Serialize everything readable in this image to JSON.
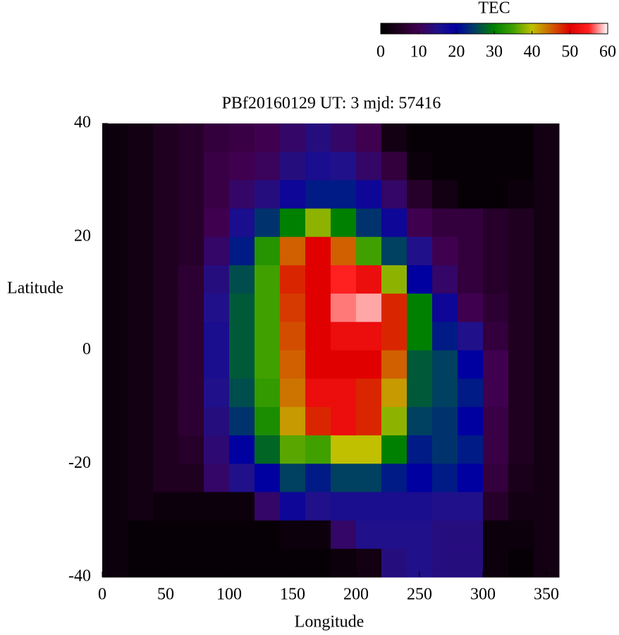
{
  "chart_data": {
    "type": "heatmap",
    "title": "PBf20160129  UT: 3  mjd: 57416",
    "xlabel": "Longitude",
    "ylabel": "Latitude",
    "x": [
      10,
      30,
      50,
      70,
      90,
      110,
      130,
      150,
      170,
      190,
      210,
      230,
      250,
      270,
      290,
      310,
      330,
      350
    ],
    "y": [
      37.5,
      32.5,
      27.5,
      22.5,
      17.5,
      12.5,
      7.5,
      2.5,
      -2.5,
      -7.5,
      -12.5,
      -17.5,
      -22.5,
      -27.5,
      -32.5,
      -37.5
    ],
    "values": [
      [
        2,
        3,
        5,
        6,
        8,
        9,
        10,
        12,
        14,
        12,
        10,
        3,
        1,
        1,
        1,
        1,
        1,
        3
      ],
      [
        2,
        3,
        5,
        6,
        9,
        10,
        11,
        14,
        16,
        15,
        12,
        8,
        2,
        1,
        1,
        1,
        1,
        3
      ],
      [
        2,
        3,
        5,
        6,
        9,
        12,
        14,
        18,
        22,
        22,
        18,
        12,
        6,
        3,
        1,
        1,
        2,
        3
      ],
      [
        2,
        3,
        5,
        6,
        10,
        16,
        24,
        30,
        38,
        30,
        24,
        18,
        10,
        8,
        8,
        6,
        5,
        3
      ],
      [
        2,
        3,
        5,
        6,
        12,
        22,
        33,
        45,
        50,
        45,
        35,
        25,
        15,
        10,
        8,
        6,
        5,
        3
      ],
      [
        2,
        3,
        5,
        7,
        14,
        26,
        35,
        48,
        50,
        55,
        52,
        38,
        20,
        12,
        8,
        6,
        5,
        3
      ],
      [
        2,
        3,
        5,
        7,
        15,
        27,
        35,
        47,
        50,
        57,
        58,
        48,
        30,
        18,
        10,
        7,
        5,
        3
      ],
      [
        2,
        3,
        5,
        7,
        16,
        27,
        35,
        46,
        50,
        52,
        52,
        48,
        30,
        22,
        15,
        8,
        5,
        3
      ],
      [
        2,
        3,
        5,
        7,
        16,
        27,
        35,
        45,
        50,
        50,
        50,
        45,
        27,
        25,
        20,
        10,
        5,
        3
      ],
      [
        2,
        3,
        5,
        7,
        15,
        26,
        34,
        44,
        52,
        52,
        48,
        42,
        27,
        25,
        22,
        10,
        5,
        3
      ],
      [
        2,
        3,
        5,
        7,
        14,
        24,
        32,
        42,
        48,
        52,
        48,
        38,
        25,
        24,
        20,
        9,
        5,
        3
      ],
      [
        2,
        3,
        5,
        6,
        13,
        20,
        28,
        36,
        35,
        40,
        40,
        30,
        22,
        24,
        22,
        9,
        5,
        3
      ],
      [
        2,
        3,
        5,
        5,
        12,
        15,
        20,
        25,
        22,
        25,
        25,
        22,
        20,
        22,
        20,
        8,
        4,
        3
      ],
      [
        2,
        3,
        2,
        2,
        2,
        2,
        12,
        18,
        15,
        16,
        16,
        16,
        16,
        15,
        15,
        6,
        3,
        3
      ],
      [
        2,
        1,
        1,
        1,
        1,
        1,
        1,
        2,
        2,
        12,
        15,
        15,
        15,
        14,
        14,
        2,
        2,
        3
      ],
      [
        2,
        1,
        1,
        1,
        1,
        1,
        1,
        1,
        1,
        2,
        3,
        14,
        15,
        14,
        14,
        2,
        1,
        3
      ]
    ],
    "xlim": [
      0,
      360
    ],
    "xticks": [
      0,
      50,
      100,
      150,
      200,
      250,
      300,
      350
    ],
    "ylim": [
      -40,
      40
    ],
    "yticks": [
      -40,
      -20,
      0,
      20,
      40
    ],
    "colorbar": {
      "label": "TEC",
      "lim": [
        0,
        60
      ],
      "ticks": [
        0,
        10,
        20,
        30,
        40,
        50,
        60
      ]
    },
    "colorscale": [
      "#000000",
      "#200020",
      "#400050",
      "#20108a",
      "#0000a0",
      "#004060",
      "#008000",
      "#40a000",
      "#c0c000",
      "#d06000",
      "#e00000",
      "#ff2020",
      "#ffffff"
    ]
  }
}
